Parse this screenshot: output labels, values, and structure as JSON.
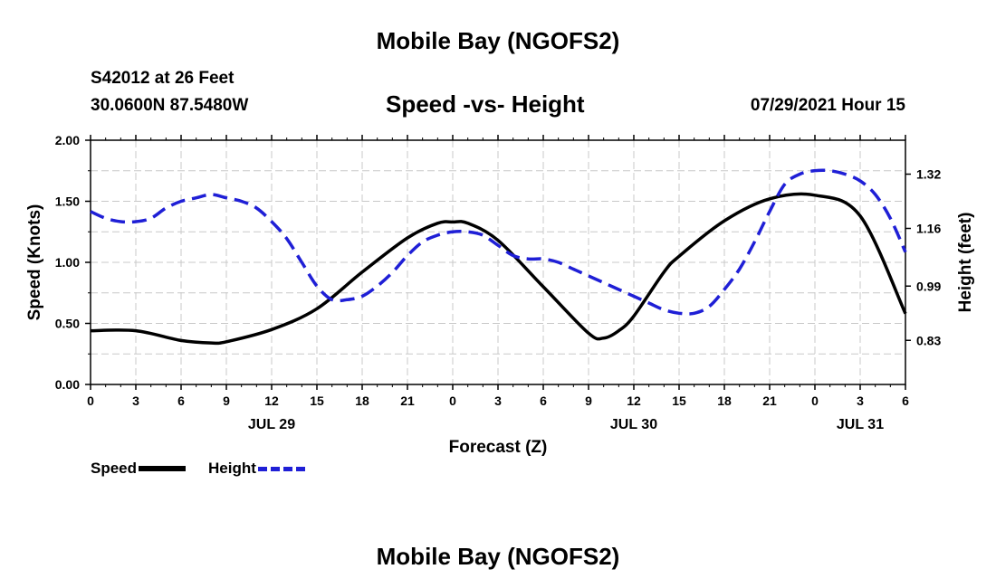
{
  "header": {
    "top_title": "Mobile Bay (NGOFS2)",
    "station": "S42012 at 26 Feet",
    "coords": "30.0600N  87.5480W",
    "chart_title": "Speed -vs- Height",
    "datetime": "07/29/2021 Hour 15"
  },
  "footer": {
    "bottom_title": "Mobile Bay (NGOFS2)"
  },
  "legend": {
    "speed": "Speed",
    "height": "Height"
  },
  "colors": {
    "speed": "#000000",
    "height": "#1f1fd6",
    "grid": "#c8c8c8"
  },
  "chart_data": {
    "type": "line",
    "title": "Speed -vs- Height",
    "xlabel": "Forecast (Z)",
    "ylabel": "Speed (Knots)",
    "y2label": "Height (feet)",
    "grid": true,
    "legend_placement": "bottom-left",
    "x_range_hours": [
      0,
      54
    ],
    "x_ticks": [
      "0",
      "3",
      "6",
      "9",
      "12",
      "15",
      "18",
      "21",
      "0",
      "3",
      "6",
      "9",
      "12",
      "15",
      "18",
      "21",
      "0",
      "3",
      "6"
    ],
    "date_labels": [
      {
        "label": "JUL 29",
        "hour": 12
      },
      {
        "label": "JUL 30",
        "hour": 36
      },
      {
        "label": "JUL 31",
        "hour": 51
      }
    ],
    "ylim": [
      0,
      2.0
    ],
    "y_ticks": [
      "0.00",
      "0.50",
      "1.00",
      "1.50",
      "2.00"
    ],
    "y2lim": [
      0.7,
      1.42
    ],
    "y2_ticks": [
      {
        "label": "0.83",
        "value": 0.83
      },
      {
        "label": "0.99",
        "value": 0.99
      },
      {
        "label": "1.16",
        "value": 1.16
      },
      {
        "label": "1.32",
        "value": 1.32
      }
    ],
    "series": [
      {
        "name": "Speed",
        "axis": "left",
        "x": [
          0,
          3,
          6,
          8,
          9,
          12,
          15,
          18,
          21,
          23,
          24,
          25,
          27,
          30,
          33,
          34,
          35,
          36,
          38,
          39,
          42,
          45,
          48,
          51,
          54
        ],
        "values": [
          0.44,
          0.44,
          0.36,
          0.34,
          0.35,
          0.45,
          0.62,
          0.92,
          1.2,
          1.32,
          1.33,
          1.32,
          1.18,
          0.8,
          0.42,
          0.38,
          0.44,
          0.56,
          0.92,
          1.05,
          1.34,
          1.52,
          1.55,
          1.38,
          0.58
        ]
      },
      {
        "name": "Height",
        "axis": "right",
        "x": [
          0,
          1,
          2,
          3,
          4,
          5,
          6,
          7,
          8,
          9,
          10,
          11,
          12,
          13,
          14,
          15,
          16,
          17,
          18,
          19,
          20,
          21,
          22,
          23,
          24,
          25,
          26,
          27,
          28,
          29,
          30,
          31,
          32,
          33,
          34,
          35,
          36,
          37,
          38,
          39,
          40,
          41,
          42,
          43,
          44,
          45,
          46,
          47,
          48,
          49,
          50,
          51,
          52,
          53,
          54
        ],
        "values": [
          1.21,
          1.19,
          1.18,
          1.18,
          1.19,
          1.22,
          1.24,
          1.25,
          1.26,
          1.25,
          1.24,
          1.22,
          1.18,
          1.13,
          1.06,
          0.99,
          0.95,
          0.95,
          0.96,
          0.99,
          1.03,
          1.08,
          1.12,
          1.14,
          1.15,
          1.15,
          1.14,
          1.11,
          1.08,
          1.07,
          1.07,
          1.06,
          1.04,
          1.02,
          1.0,
          0.98,
          0.96,
          0.94,
          0.92,
          0.91,
          0.91,
          0.93,
          0.98,
          1.04,
          1.12,
          1.21,
          1.29,
          1.32,
          1.33,
          1.33,
          1.32,
          1.3,
          1.26,
          1.19,
          1.09
        ]
      }
    ]
  }
}
